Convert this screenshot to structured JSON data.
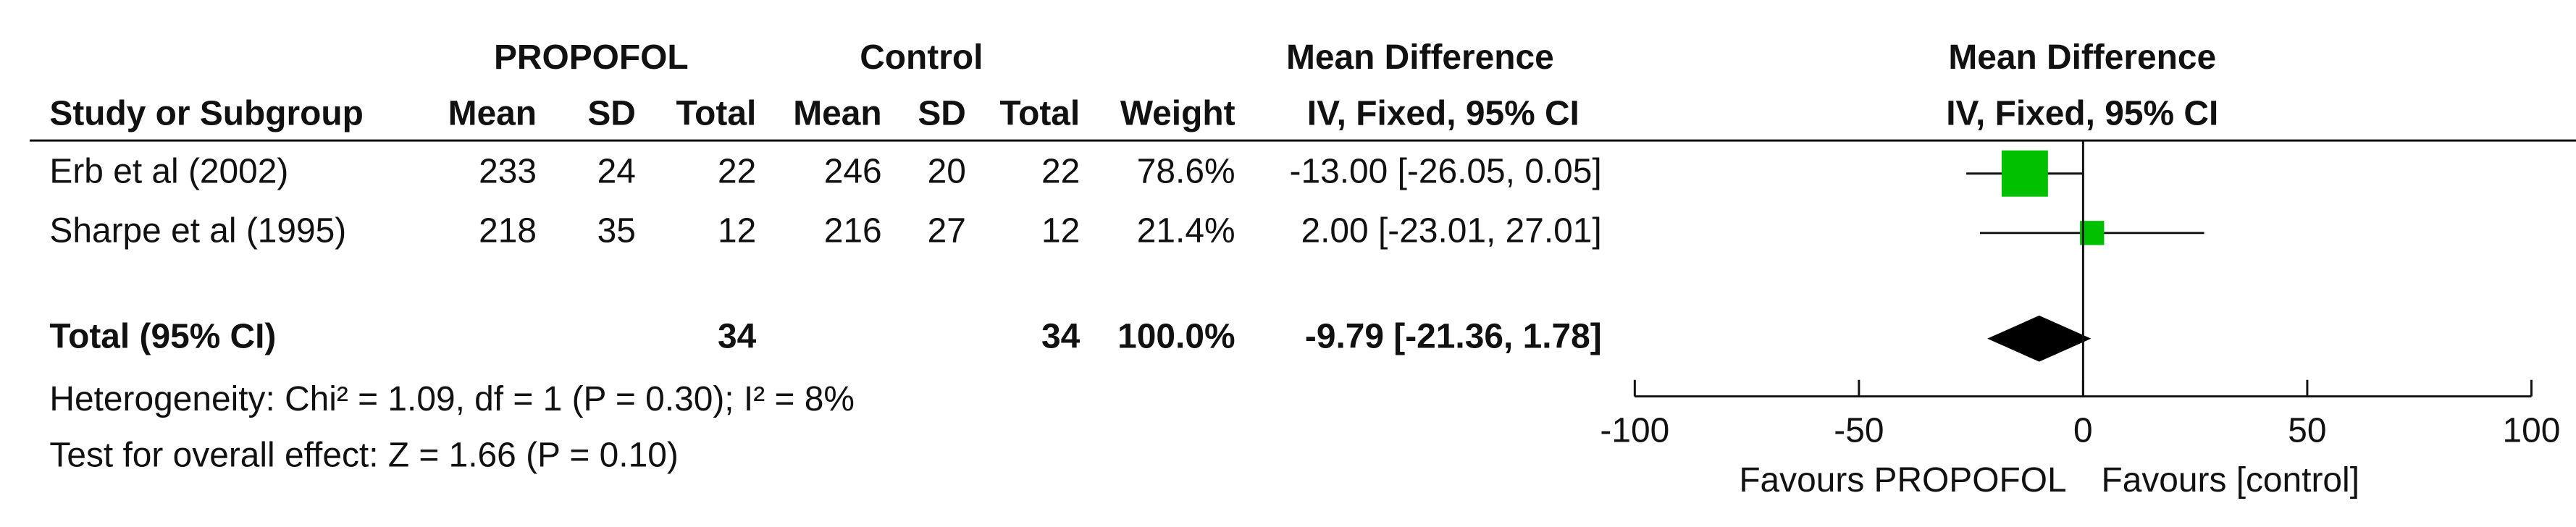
{
  "chart_data": {
    "type": "forest",
    "group_headers": [
      "PROPOFOL",
      "Control",
      "Mean Difference",
      "Mean Difference"
    ],
    "columns": [
      "Study or Subgroup",
      "Mean",
      "SD",
      "Total",
      "Mean",
      "SD",
      "Total",
      "Weight",
      "IV, Fixed, 95% CI",
      "IV, Fixed, 95% CI"
    ],
    "studies": [
      {
        "name": "Erb et al (2002)",
        "exp_mean": 233,
        "exp_sd": 24,
        "exp_total": 22,
        "ctl_mean": 246,
        "ctl_sd": 20,
        "ctl_total": 22,
        "weight": 78.6,
        "weight_label": "78.6%",
        "md": -13.0,
        "lower": -26.05,
        "upper": 0.05,
        "ci_label": "-13.00 [-26.05, 0.05]"
      },
      {
        "name": "Sharpe et al (1995)",
        "exp_mean": 218,
        "exp_sd": 35,
        "exp_total": 12,
        "ctl_mean": 216,
        "ctl_sd": 27,
        "ctl_total": 12,
        "weight": 21.4,
        "weight_label": "21.4%",
        "md": 2.0,
        "lower": -23.01,
        "upper": 27.01,
        "ci_label": "2.00 [-23.01, 27.01]"
      }
    ],
    "total": {
      "name": "Total (95% CI)",
      "exp_total": 34,
      "ctl_total": 34,
      "weight": 100.0,
      "weight_label": "100.0%",
      "md": -9.79,
      "lower": -21.36,
      "upper": 1.78,
      "ci_label": "-9.79 [-21.36, 1.78]"
    },
    "heterogeneity": "Heterogeneity: Chi² = 1.09, df = 1 (P = 0.30); I² = 8%",
    "overall_effect": "Test for overall effect: Z = 1.66 (P = 0.10)",
    "xlim": [
      -100,
      100
    ],
    "xticks": [
      -100,
      -50,
      0,
      50,
      100
    ],
    "favours_left": "Favours PROPOFOL",
    "favours_right": "Favours [control]",
    "color": "#00c000",
    "total_color": "#000000"
  }
}
